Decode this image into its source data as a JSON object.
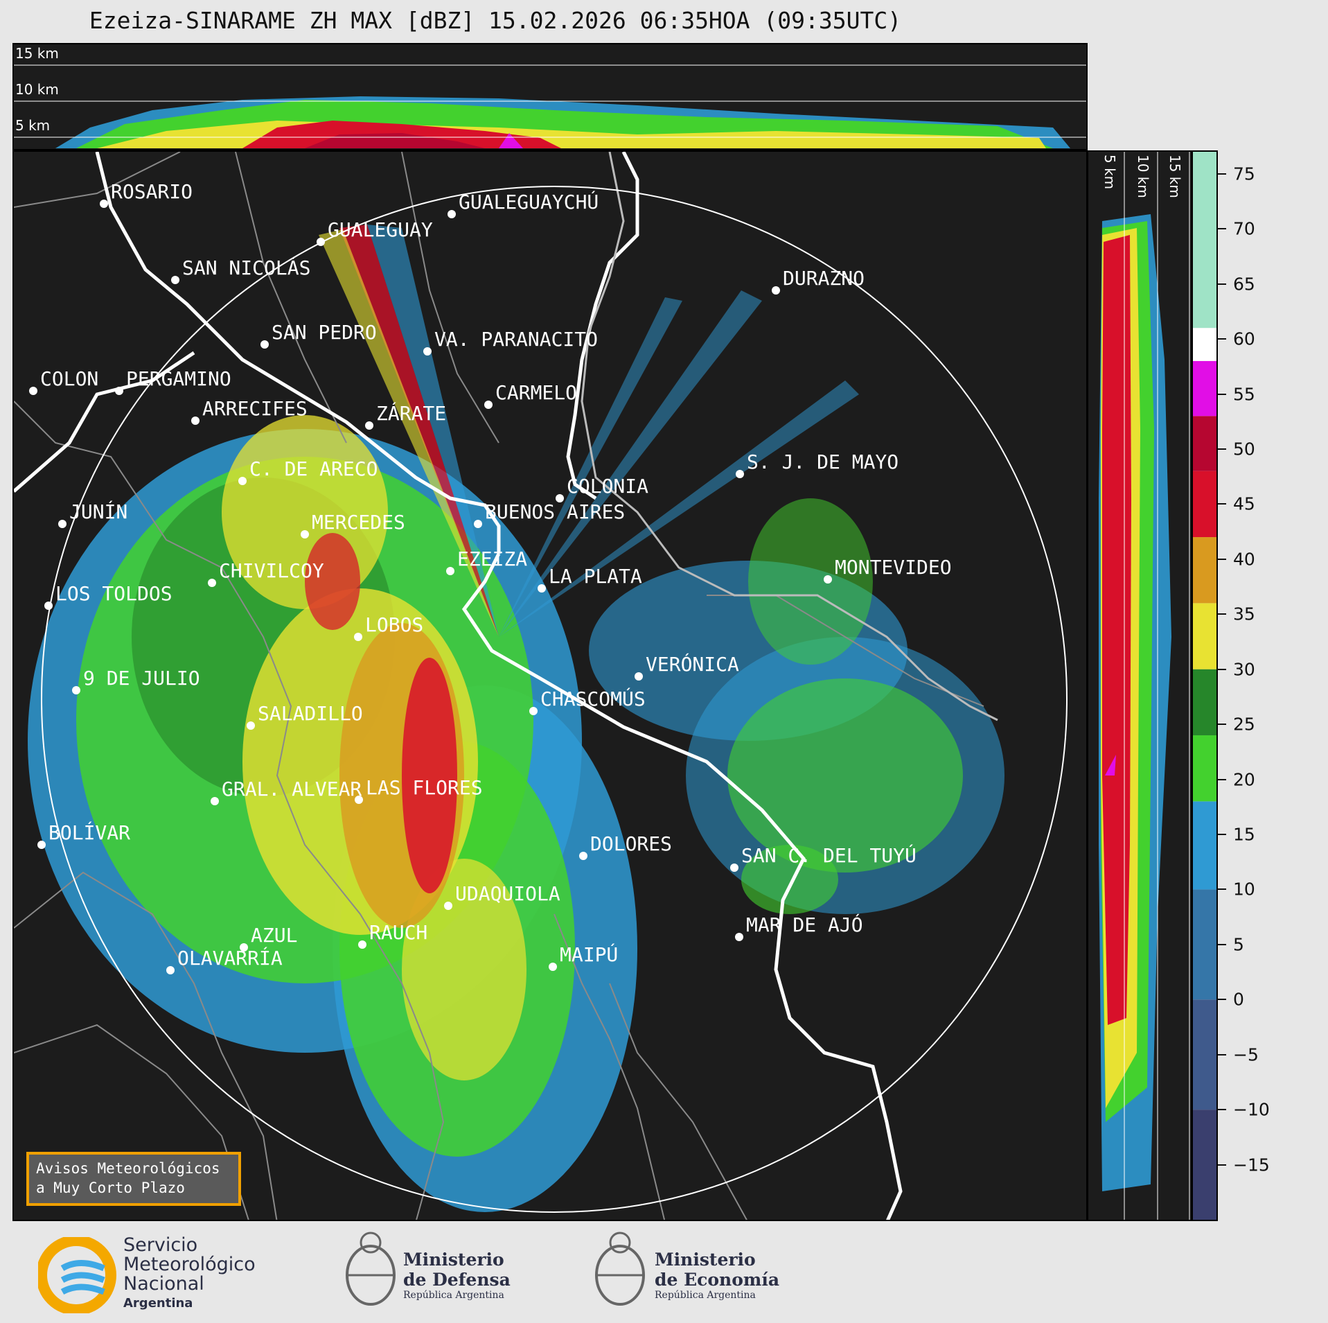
{
  "title": "Ezeiza-SINARAME ZH MAX [dBZ] 15.02.2026 06:35HOA (09:35UTC)",
  "top_panel_altitudes": [
    "15 km",
    "10 km",
    "5 km"
  ],
  "side_panel_altitudes": [
    "5 km",
    "10 km",
    "15 km"
  ],
  "cities": [
    {
      "name": "ROSARIO"
    },
    {
      "name": "GUALEGUAYCHÚ"
    },
    {
      "name": "GUALEGUAY"
    },
    {
      "name": "SAN NICOLÁS"
    },
    {
      "name": "DURAZNO"
    },
    {
      "name": "SAN PEDRO"
    },
    {
      "name": "VA. PARANACITO"
    },
    {
      "name": "COLON"
    },
    {
      "name": "PERGAMINO"
    },
    {
      "name": "CARMELO"
    },
    {
      "name": "ARRECIFES"
    },
    {
      "name": "ZÁRATE"
    },
    {
      "name": "S. J. DE MAYO"
    },
    {
      "name": "C. DE ARECO"
    },
    {
      "name": "COLONIA"
    },
    {
      "name": "JUNÍN"
    },
    {
      "name": "BUENOS AIRES"
    },
    {
      "name": "MERCEDES"
    },
    {
      "name": "EZEIZA"
    },
    {
      "name": "MONTEVIDEO"
    },
    {
      "name": "CHIVILCOY"
    },
    {
      "name": "LA PLATA"
    },
    {
      "name": "LOS TOLDOS"
    },
    {
      "name": "LOBOS"
    },
    {
      "name": "VERÓNICA"
    },
    {
      "name": "9 DE JULIO"
    },
    {
      "name": "CHASCOMÚS"
    },
    {
      "name": "SALADILLO"
    },
    {
      "name": "GRAL. ALVEAR"
    },
    {
      "name": "LAS FLORES"
    },
    {
      "name": "BOLÍVAR"
    },
    {
      "name": "DOLORES"
    },
    {
      "name": "SAN C. DEL TUYÚ"
    },
    {
      "name": "UDAQUIOLA"
    },
    {
      "name": "MAR DE AJÓ"
    },
    {
      "name": "AZUL"
    },
    {
      "name": "RAUCH"
    },
    {
      "name": "OLAVARRÍA"
    },
    {
      "name": "MAIPÚ"
    }
  ],
  "colorbar": {
    "unit": "dBZ",
    "ticks": [
      "75",
      "70",
      "65",
      "60",
      "55",
      "50",
      "45",
      "40",
      "35",
      "30",
      "25",
      "20",
      "15",
      "10",
      "5",
      "0",
      "−5",
      "−10",
      "−15"
    ],
    "scale": [
      {
        "from": -20,
        "to": -10,
        "color": "#3a3f6e"
      },
      {
        "from": -10,
        "to": 0,
        "color": "#3f5a8c"
      },
      {
        "from": 0,
        "to": 10,
        "color": "#3576a8"
      },
      {
        "from": 10,
        "to": 18,
        "color": "#2f9ad3"
      },
      {
        "from": 18,
        "to": 24,
        "color": "#43d12e"
      },
      {
        "from": 24,
        "to": 30,
        "color": "#26862a"
      },
      {
        "from": 30,
        "to": 36,
        "color": "#e8e232"
      },
      {
        "from": 36,
        "to": 42,
        "color": "#d99a1f"
      },
      {
        "from": 42,
        "to": 48,
        "color": "#d8102a"
      },
      {
        "from": 48,
        "to": 53,
        "color": "#b60630"
      },
      {
        "from": 53,
        "to": 58,
        "color": "#e10ee6"
      },
      {
        "from": 58,
        "to": 61,
        "color": "#ffffff"
      },
      {
        "from": 61,
        "to": 77,
        "color": "#9fe3c6"
      }
    ]
  },
  "notice": {
    "line1": "Avisos Meteorológicos",
    "line2": "a Muy Corto Plazo"
  },
  "logos": [
    {
      "line1": "Servicio",
      "line2": "Meteorológico",
      "line3": "Nacional",
      "line4": "Argentina"
    },
    {
      "line1": "Ministerio",
      "line2": "de Defensa",
      "line3": "República Argentina"
    },
    {
      "line1": "Ministerio",
      "line2": "de Economía",
      "line3": "República Argentina"
    }
  ]
}
